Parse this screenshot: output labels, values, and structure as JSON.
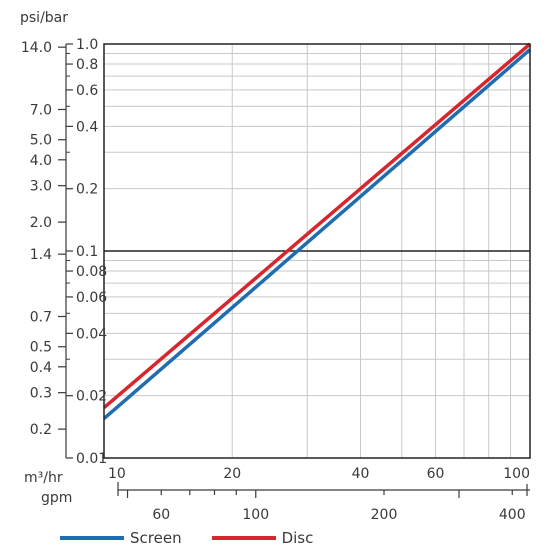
{
  "chart_data": {
    "type": "line",
    "y_units_label": "psi/bar",
    "x_units_label_top": "m³/hr",
    "x_units_label_bottom": "gpm",
    "x_scale": "log",
    "y_scale": "log",
    "xlim": [
      10,
      100
    ],
    "ylim": [
      0.01,
      1.0
    ],
    "grid": true,
    "legend_position": "bottom",
    "x_ticks_m3hr": [
      10,
      20,
      40,
      60,
      100
    ],
    "x_ticks_gpm": [
      60,
      100,
      200,
      400
    ],
    "y_ticks_bar": [
      0.01,
      0.02,
      0.04,
      0.06,
      0.08,
      0.1,
      0.2,
      0.4,
      0.6,
      0.8,
      1.0
    ],
    "y_ticks_bar_labels": [
      "0.01",
      "0.02",
      "0.04",
      "0.06",
      "0.08",
      "0.1",
      "0.2",
      "0.4",
      "0.6",
      "0.8",
      "1.0"
    ],
    "y_ticks_psi": [
      0.2,
      0.3,
      0.4,
      0.5,
      0.7,
      1.4,
      2.0,
      3.0,
      4.0,
      5.0,
      7.0,
      14.0
    ],
    "y_ticks_psi_labels": [
      "0.2",
      "0.3",
      "0.4",
      "0.5",
      "0.7",
      "1.4",
      "2.0",
      "3.0",
      "4.0",
      "5.0",
      "7.0",
      "14.0"
    ],
    "series": [
      {
        "name": "Screen",
        "color": "#1f6cb0",
        "x": [
          10,
          100
        ],
        "y": [
          0.0155,
          0.94
        ]
      },
      {
        "name": "Disc",
        "color": "#d7262e",
        "x": [
          10,
          100
        ],
        "y": [
          0.0175,
          1.0
        ]
      }
    ]
  }
}
